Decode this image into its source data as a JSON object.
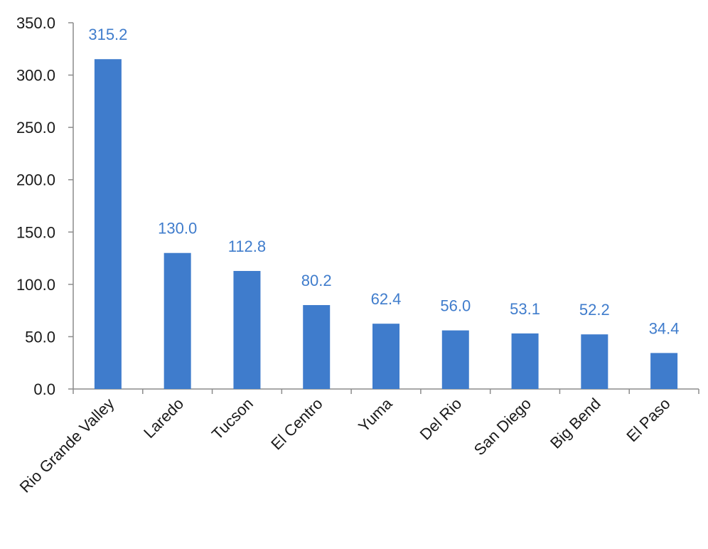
{
  "chart_data": {
    "type": "bar",
    "categories": [
      "Rio Grande Valley",
      "Laredo",
      "Tucson",
      "El Centro",
      "Yuma",
      "Del Rio",
      "San Diego",
      "Big Bend",
      "El Paso"
    ],
    "values": [
      315.2,
      130.0,
      112.8,
      80.2,
      62.4,
      56.0,
      53.1,
      52.2,
      34.4
    ],
    "value_labels": [
      "315.2",
      "130.0",
      "112.8",
      "80.2",
      "62.4",
      "56.0",
      "53.1",
      "52.2",
      "34.4"
    ],
    "y_ticks": [
      0,
      50,
      100,
      150,
      200,
      250,
      300,
      350
    ],
    "y_tick_labels": [
      "0.0",
      "50.0",
      "100.0",
      "150.0",
      "200.0",
      "250.0",
      "300.0",
      "350.0"
    ],
    "ylim": [
      0,
      350
    ],
    "title": "",
    "xlabel": "",
    "ylabel": "",
    "grid": false,
    "legend": "none",
    "colors": {
      "bar": "#3f7ccc",
      "data_label": "#3f7ccc",
      "axis": "#8c8c8c"
    }
  }
}
